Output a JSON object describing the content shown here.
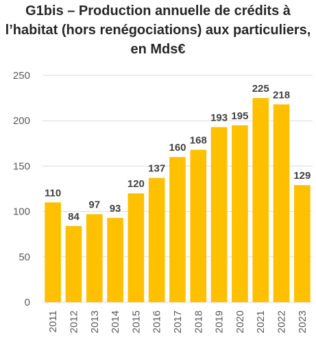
{
  "title_lines": [
    "G1bis – Production annuelle de crédits à",
    "l’habitat (hors renégociations) aux particuliers,",
    "en Mds€"
  ],
  "colors": {
    "bar": "#FFC000",
    "gridline": "#D9D9D9",
    "axis_text": "#595959",
    "data_label": "#404040"
  },
  "chart_data": {
    "type": "bar",
    "title": "G1bis – Production annuelle de crédits à l’habitat (hors renégociations) aux particuliers, en Mds€",
    "categories": [
      "2011",
      "2012",
      "2013",
      "2014",
      "2015",
      "2016",
      "2017",
      "2018",
      "2019",
      "2020",
      "2021",
      "2022",
      "2023"
    ],
    "values": [
      110,
      84,
      97,
      93,
      120,
      137,
      160,
      168,
      193,
      195,
      225,
      218,
      129
    ],
    "data_labels": [
      "110",
      "84",
      "97",
      "93",
      "120",
      "137",
      "160",
      "168",
      "193",
      "195",
      "225",
      "218",
      "129"
    ],
    "xlabel": "",
    "ylabel": "",
    "ylim": [
      0,
      250
    ],
    "yticks": [
      "0",
      "50",
      "100",
      "150",
      "200",
      "250"
    ],
    "grid": true,
    "legend": "none"
  }
}
